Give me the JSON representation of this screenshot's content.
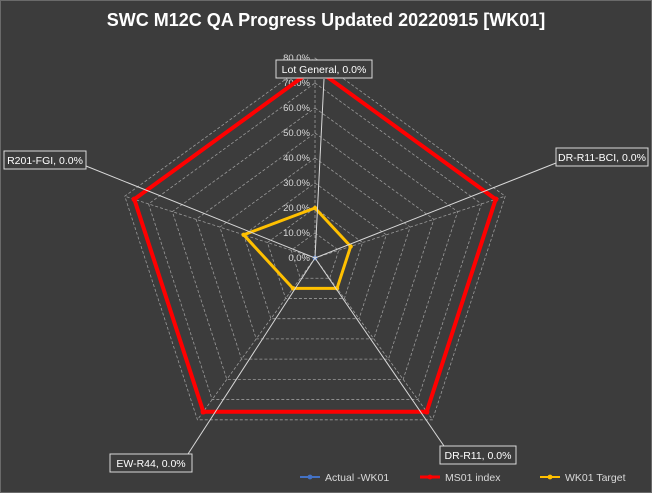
{
  "chart_data": {
    "type": "radar",
    "title": "SWC M12C QA Progress Updated 20220915 [WK01]",
    "categories": [
      "Lot General",
      "DR-R11-BCI",
      "DR-R11",
      "EW-R44",
      "R201-FGI"
    ],
    "rlim": [
      0,
      0.8
    ],
    "tick_labels": [
      "0.0%",
      "10.0%",
      "20.0%",
      "30.0%",
      "40.0%",
      "50.0%",
      "60.0%",
      "70.0%",
      "80.0%"
    ],
    "grid": true,
    "legend_position": "bottom-right",
    "series": [
      {
        "name": "Actual -WK01",
        "values": [
          0,
          0,
          0,
          0,
          0
        ],
        "color": "#4472c4"
      },
      {
        "name": "MS01 index",
        "values": [
          0.76,
          0.76,
          0.76,
          0.76,
          0.76
        ],
        "color": "#ff0000"
      },
      {
        "name": "WK01 Target",
        "values": [
          0.2,
          0.15,
          0.15,
          0.15,
          0.3
        ],
        "color": "#ffc000"
      }
    ],
    "data_labels": [
      "Lot General, 0.0%",
      "DR-R11-BCI, 0.0%",
      "DR-R11, 0.0%",
      "EW-R44, 0.0%",
      "R201-FGI, 0.0%"
    ]
  }
}
